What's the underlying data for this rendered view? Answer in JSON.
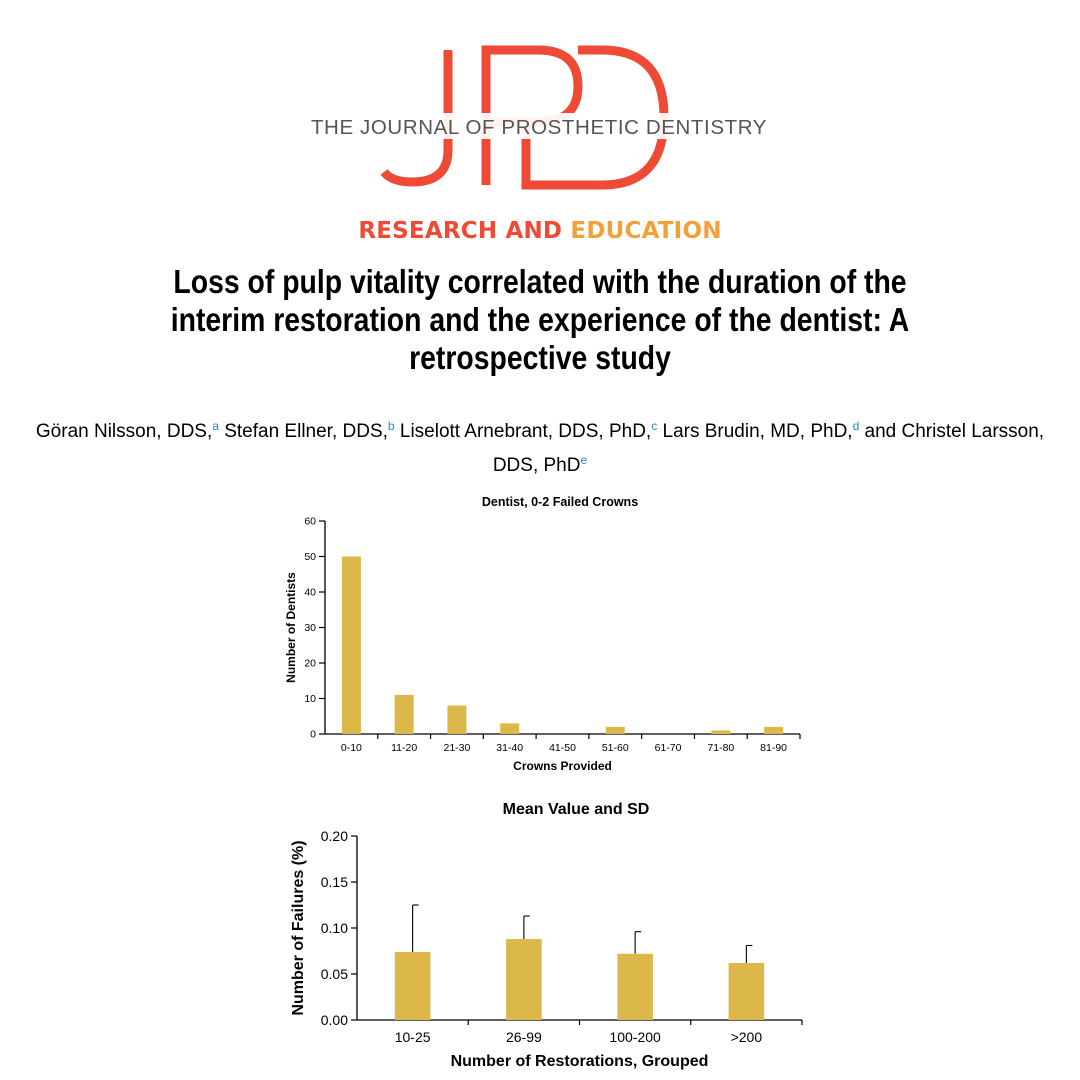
{
  "journal": {
    "logo_letters": "JPD",
    "name": "THE JOURNAL OF PROSTHETIC DENTISTRY",
    "colors": {
      "primary": "#ee4a35",
      "secondary": "#f2a13a",
      "text": "#555555"
    }
  },
  "section": {
    "part1": "RESEARCH AND ",
    "part2": "EDUCATION"
  },
  "title": "Loss of pulp vitality correlated with the duration of the interim restoration and the experience of the dentist: A retrospective study",
  "authors": [
    {
      "name": "Göran Nilsson, DDS,",
      "sup": "a"
    },
    {
      "name": " Stefan Ellner, DDS,",
      "sup": "b"
    },
    {
      "name": " Liselott Arnebrant, DDS, PhD,",
      "sup": "c"
    },
    {
      "name": " Lars Brudin, MD, PhD,",
      "sup": "d"
    },
    {
      "name": " and Christel Larsson, DDS, PhD",
      "sup": "e"
    }
  ],
  "chart_data": [
    {
      "type": "bar",
      "title": "Dentist, 0-2 Failed Crowns",
      "xlabel": "Crowns Provided",
      "ylabel": "Number of Dentists",
      "categories": [
        "0-10",
        "11-20",
        "21-30",
        "31-40",
        "41-50",
        "51-60",
        "61-70",
        "71-80",
        "81-90"
      ],
      "values": [
        50,
        11,
        8,
        3,
        0,
        2,
        0,
        1,
        2
      ],
      "ylim": [
        0,
        60
      ],
      "yticks": [
        "0",
        "10",
        "20",
        "30",
        "40",
        "50",
        "60"
      ],
      "bar_color": "#dcb84a",
      "grid": false
    },
    {
      "type": "bar",
      "title": "Mean Value and SD",
      "xlabel": "Number of Restorations, Grouped",
      "ylabel": "Number of Failures (%)",
      "categories": [
        "10-25",
        "26-99",
        "100-200",
        ">200"
      ],
      "values": [
        0.074,
        0.088,
        0.072,
        0.062
      ],
      "sd": [
        0.051,
        0.025,
        0.024,
        0.019
      ],
      "ylim": [
        0,
        0.2
      ],
      "yticks": [
        "0.00",
        "0.05",
        "0.10",
        "0.15",
        "0.20"
      ],
      "bar_color": "#dcb84a",
      "grid": false
    }
  ]
}
